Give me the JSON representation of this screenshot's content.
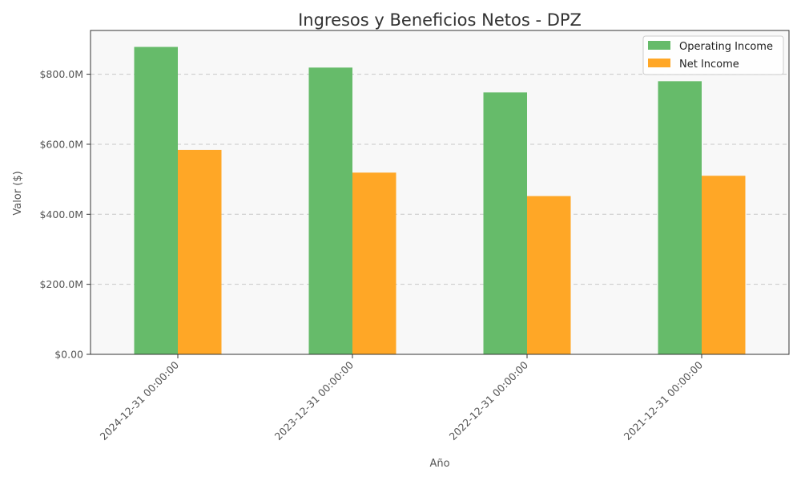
{
  "chart_data": {
    "type": "bar",
    "title": "Ingresos y Beneficios Netos - DPZ",
    "xlabel": "Año",
    "ylabel": "Valor ($)",
    "categories": [
      "2024-12-31 00:00:00",
      "2023-12-31 00:00:00",
      "2022-12-31 00:00:00",
      "2021-12-31 00:00:00"
    ],
    "series": [
      {
        "name": "Operating Income",
        "values": [
          878000000,
          819000000,
          748000000,
          780000000
        ]
      },
      {
        "name": "Net Income",
        "values": [
          584000000,
          519000000,
          452000000,
          510000000
        ]
      }
    ],
    "ylim": [
      0,
      925000000
    ],
    "yticks": [
      {
        "value": 0,
        "label": "$0.00"
      },
      {
        "value": 200000000,
        "label": "$200.0M"
      },
      {
        "value": 400000000,
        "label": "$400.0M"
      },
      {
        "value": 600000000,
        "label": "$600.0M"
      },
      {
        "value": 800000000,
        "label": "$800.0M"
      }
    ],
    "grid": "y-dashed",
    "legend_position": "top-right",
    "colors": {
      "operating_income": "#66bb6a",
      "net_income": "#ffa726",
      "plot_background": "#f8f8f8",
      "grid": "#c8c8c8",
      "text": "#555555",
      "title": "#333333"
    }
  }
}
